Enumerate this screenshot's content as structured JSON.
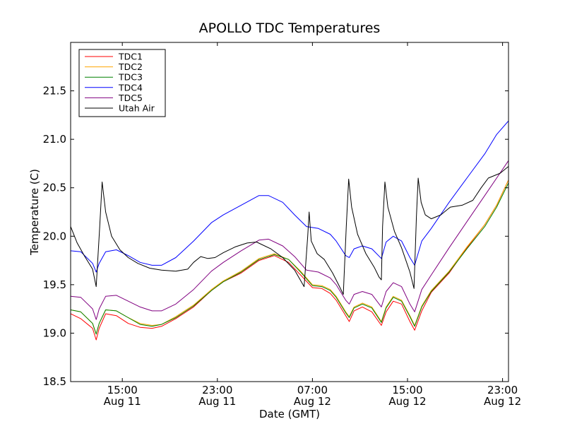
{
  "chart_data": {
    "type": "line",
    "title": "APOLLO TDC Temperatures",
    "xlabel": "Date (GMT)",
    "ylabel": "Temperature (C)",
    "x_unit": "hours since Aug 11 00:00 GMT",
    "xlim": [
      10.65,
      47.5
    ],
    "ylim": [
      18.5,
      22.0
    ],
    "grid": false,
    "legend_position": "top-left",
    "x_ticks": [
      {
        "x": 15,
        "time": "15:00",
        "date": "Aug 11"
      },
      {
        "x": 23,
        "time": "23:00",
        "date": "Aug 11"
      },
      {
        "x": 31,
        "time": "07:00",
        "date": "Aug 12"
      },
      {
        "x": 39,
        "time": "15:00",
        "date": "Aug 12"
      },
      {
        "x": 47,
        "time": "23:00",
        "date": "Aug 12"
      }
    ],
    "y_ticks": [
      {
        "v": 18.5,
        "label": "18.5"
      },
      {
        "v": 19.0,
        "label": "19.0"
      },
      {
        "v": 19.5,
        "label": "19.5"
      },
      {
        "v": 20.0,
        "label": "20.0"
      },
      {
        "v": 20.5,
        "label": "20.5"
      },
      {
        "v": 21.0,
        "label": "21.0"
      },
      {
        "v": 21.5,
        "label": "21.5"
      }
    ],
    "series": [
      {
        "name": "TDC1",
        "color": "#ff0000",
        "points": [
          [
            10.65,
            19.2
          ],
          [
            11.5,
            19.15
          ],
          [
            12.5,
            19.05
          ],
          [
            12.8,
            18.93
          ],
          [
            13.05,
            19.05
          ],
          [
            13.6,
            19.2
          ],
          [
            14.5,
            19.18
          ],
          [
            15.5,
            19.1
          ],
          [
            16.5,
            19.06
          ],
          [
            17.5,
            19.05
          ],
          [
            18.3,
            19.07
          ],
          [
            19.5,
            19.15
          ],
          [
            21,
            19.27
          ],
          [
            22.5,
            19.44
          ],
          [
            23.5,
            19.53
          ],
          [
            25,
            19.62
          ],
          [
            26.5,
            19.75
          ],
          [
            27.8,
            19.8
          ],
          [
            29,
            19.73
          ],
          [
            30,
            19.6
          ],
          [
            31,
            19.47
          ],
          [
            31.8,
            19.46
          ],
          [
            32.5,
            19.41
          ],
          [
            33,
            19.34
          ],
          [
            33.8,
            19.18
          ],
          [
            34.1,
            19.12
          ],
          [
            34.5,
            19.23
          ],
          [
            35.2,
            19.27
          ],
          [
            36,
            19.22
          ],
          [
            36.8,
            19.08
          ],
          [
            37.2,
            19.22
          ],
          [
            37.8,
            19.33
          ],
          [
            38.5,
            19.3
          ],
          [
            39.2,
            19.12
          ],
          [
            39.6,
            19.03
          ],
          [
            40.2,
            19.23
          ],
          [
            41,
            19.42
          ],
          [
            42.5,
            19.62
          ],
          [
            44,
            19.88
          ],
          [
            45.5,
            20.12
          ],
          [
            46.5,
            20.32
          ],
          [
            47.5,
            20.58
          ]
        ]
      },
      {
        "name": "TDC2",
        "color": "#ffa500",
        "points": [
          [
            10.65,
            19.24
          ],
          [
            11.5,
            19.22
          ],
          [
            12.5,
            19.1
          ],
          [
            12.8,
            18.99
          ],
          [
            13.05,
            19.1
          ],
          [
            13.6,
            19.24
          ],
          [
            14.5,
            19.23
          ],
          [
            15.5,
            19.16
          ],
          [
            16.5,
            19.1
          ],
          [
            17.5,
            19.08
          ],
          [
            18.3,
            19.09
          ],
          [
            19.5,
            19.17
          ],
          [
            21,
            19.29
          ],
          [
            22.5,
            19.45
          ],
          [
            23.5,
            19.54
          ],
          [
            25,
            19.64
          ],
          [
            26.5,
            19.77
          ],
          [
            27.8,
            19.82
          ],
          [
            29,
            19.76
          ],
          [
            30,
            19.64
          ],
          [
            31,
            19.5
          ],
          [
            31.8,
            19.49
          ],
          [
            32.5,
            19.45
          ],
          [
            33,
            19.38
          ],
          [
            33.8,
            19.22
          ],
          [
            34.1,
            19.17
          ],
          [
            34.5,
            19.27
          ],
          [
            35.2,
            19.31
          ],
          [
            36,
            19.27
          ],
          [
            36.8,
            19.12
          ],
          [
            37.2,
            19.27
          ],
          [
            37.8,
            19.38
          ],
          [
            38.5,
            19.34
          ],
          [
            39.2,
            19.18
          ],
          [
            39.6,
            19.08
          ],
          [
            40.2,
            19.28
          ],
          [
            41,
            19.44
          ],
          [
            42.5,
            19.64
          ],
          [
            44,
            19.89
          ],
          [
            45.5,
            20.12
          ],
          [
            46.5,
            20.32
          ],
          [
            47.5,
            20.58
          ]
        ]
      },
      {
        "name": "TDC3",
        "color": "#008000",
        "points": [
          [
            10.65,
            19.24
          ],
          [
            11.5,
            19.22
          ],
          [
            12.5,
            19.1
          ],
          [
            12.8,
            18.99
          ],
          [
            13.05,
            19.1
          ],
          [
            13.6,
            19.24
          ],
          [
            14.5,
            19.23
          ],
          [
            15.5,
            19.16
          ],
          [
            16.5,
            19.09
          ],
          [
            17.5,
            19.07
          ],
          [
            18.3,
            19.09
          ],
          [
            19.5,
            19.16
          ],
          [
            21,
            19.28
          ],
          [
            22.5,
            19.44
          ],
          [
            23.5,
            19.53
          ],
          [
            25,
            19.63
          ],
          [
            26.5,
            19.76
          ],
          [
            27.8,
            19.81
          ],
          [
            29,
            19.76
          ],
          [
            30,
            19.63
          ],
          [
            31,
            19.49
          ],
          [
            31.8,
            19.48
          ],
          [
            32.5,
            19.44
          ],
          [
            33,
            19.37
          ],
          [
            33.8,
            19.21
          ],
          [
            34.1,
            19.16
          ],
          [
            34.5,
            19.26
          ],
          [
            35.2,
            19.3
          ],
          [
            36,
            19.26
          ],
          [
            36.8,
            19.11
          ],
          [
            37.2,
            19.26
          ],
          [
            37.8,
            19.37
          ],
          [
            38.5,
            19.33
          ],
          [
            39.2,
            19.17
          ],
          [
            39.6,
            19.07
          ],
          [
            40.2,
            19.27
          ],
          [
            41,
            19.43
          ],
          [
            42.5,
            19.63
          ],
          [
            44,
            19.87
          ],
          [
            45.5,
            20.1
          ],
          [
            46.5,
            20.3
          ],
          [
            47.5,
            20.55
          ]
        ]
      },
      {
        "name": "TDC4",
        "color": "#0000ff",
        "points": [
          [
            10.65,
            19.85
          ],
          [
            11.5,
            19.84
          ],
          [
            12.5,
            19.72
          ],
          [
            12.8,
            19.63
          ],
          [
            13.05,
            19.72
          ],
          [
            13.6,
            19.84
          ],
          [
            14.5,
            19.86
          ],
          [
            15.5,
            19.8
          ],
          [
            16.5,
            19.73
          ],
          [
            17.5,
            19.7
          ],
          [
            18.3,
            19.7
          ],
          [
            19.5,
            19.78
          ],
          [
            21,
            19.95
          ],
          [
            22.5,
            20.14
          ],
          [
            23.5,
            20.22
          ],
          [
            25,
            20.32
          ],
          [
            26.5,
            20.42
          ],
          [
            27.3,
            20.42
          ],
          [
            28.5,
            20.35
          ],
          [
            29.5,
            20.22
          ],
          [
            30.5,
            20.1
          ],
          [
            31.5,
            20.08
          ],
          [
            32.5,
            20.02
          ],
          [
            33,
            19.95
          ],
          [
            33.8,
            19.8
          ],
          [
            34.1,
            19.78
          ],
          [
            34.5,
            19.87
          ],
          [
            35.2,
            19.9
          ],
          [
            36,
            19.87
          ],
          [
            36.8,
            19.77
          ],
          [
            37.2,
            19.94
          ],
          [
            37.8,
            20.0
          ],
          [
            38.5,
            19.95
          ],
          [
            39.2,
            19.78
          ],
          [
            39.6,
            19.7
          ],
          [
            40.2,
            19.95
          ],
          [
            41,
            20.08
          ],
          [
            42.5,
            20.35
          ],
          [
            44,
            20.6
          ],
          [
            45.5,
            20.85
          ],
          [
            46.5,
            21.05
          ],
          [
            47.5,
            21.19
          ]
        ]
      },
      {
        "name": "TDC5",
        "color": "#800080",
        "points": [
          [
            10.65,
            19.38
          ],
          [
            11.5,
            19.37
          ],
          [
            12.5,
            19.25
          ],
          [
            12.8,
            19.14
          ],
          [
            13.05,
            19.25
          ],
          [
            13.6,
            19.38
          ],
          [
            14.5,
            19.39
          ],
          [
            15.5,
            19.33
          ],
          [
            16.5,
            19.27
          ],
          [
            17.5,
            19.23
          ],
          [
            18.3,
            19.23
          ],
          [
            19.5,
            19.3
          ],
          [
            21,
            19.45
          ],
          [
            22.5,
            19.64
          ],
          [
            23.5,
            19.73
          ],
          [
            25,
            19.85
          ],
          [
            26.5,
            19.96
          ],
          [
            27.3,
            19.97
          ],
          [
            28.5,
            19.9
          ],
          [
            29.5,
            19.79
          ],
          [
            30.5,
            19.65
          ],
          [
            31.5,
            19.63
          ],
          [
            32.5,
            19.57
          ],
          [
            33,
            19.5
          ],
          [
            33.8,
            19.34
          ],
          [
            34.1,
            19.3
          ],
          [
            34.5,
            19.4
          ],
          [
            35.2,
            19.43
          ],
          [
            36,
            19.4
          ],
          [
            36.8,
            19.27
          ],
          [
            37.2,
            19.43
          ],
          [
            37.8,
            19.52
          ],
          [
            38.5,
            19.48
          ],
          [
            39.2,
            19.3
          ],
          [
            39.6,
            19.22
          ],
          [
            40.2,
            19.45
          ],
          [
            41,
            19.6
          ],
          [
            42.5,
            19.88
          ],
          [
            44,
            20.15
          ],
          [
            45.5,
            20.42
          ],
          [
            46.5,
            20.6
          ],
          [
            47.5,
            20.78
          ]
        ]
      },
      {
        "name": "Utah Air",
        "color": "#000000",
        "points": [
          [
            10.65,
            20.1
          ],
          [
            11.2,
            19.93
          ],
          [
            11.8,
            19.8
          ],
          [
            12.5,
            19.66
          ],
          [
            12.8,
            19.48
          ],
          [
            13.1,
            20.1
          ],
          [
            13.3,
            20.56
          ],
          [
            13.6,
            20.25
          ],
          [
            14.1,
            20.0
          ],
          [
            14.8,
            19.86
          ],
          [
            15.5,
            19.78
          ],
          [
            16.3,
            19.72
          ],
          [
            17.3,
            19.67
          ],
          [
            18.3,
            19.65
          ],
          [
            19.5,
            19.64
          ],
          [
            20.5,
            19.66
          ],
          [
            21,
            19.73
          ],
          [
            21.6,
            19.79
          ],
          [
            22.2,
            19.77
          ],
          [
            22.8,
            19.78
          ],
          [
            23.5,
            19.83
          ],
          [
            24.5,
            19.89
          ],
          [
            25.5,
            19.93
          ],
          [
            26.3,
            19.94
          ],
          [
            27.5,
            19.87
          ],
          [
            28.5,
            19.78
          ],
          [
            29.5,
            19.65
          ],
          [
            30.3,
            19.48
          ],
          [
            30.6,
            20.0
          ],
          [
            30.72,
            20.25
          ],
          [
            30.9,
            19.95
          ],
          [
            31.4,
            19.82
          ],
          [
            32,
            19.76
          ],
          [
            32.7,
            19.62
          ],
          [
            33.2,
            19.5
          ],
          [
            33.6,
            19.4
          ],
          [
            33.85,
            20.1
          ],
          [
            34.05,
            20.59
          ],
          [
            34.3,
            20.3
          ],
          [
            34.8,
            20.02
          ],
          [
            35.5,
            19.82
          ],
          [
            36.2,
            19.68
          ],
          [
            36.6,
            19.58
          ],
          [
            36.8,
            19.55
          ],
          [
            36.9,
            20.1
          ],
          [
            37.1,
            20.56
          ],
          [
            37.35,
            20.3
          ],
          [
            37.9,
            20.05
          ],
          [
            38.5,
            19.88
          ],
          [
            39.2,
            19.63
          ],
          [
            39.55,
            19.46
          ],
          [
            39.75,
            20.2
          ],
          [
            39.9,
            20.6
          ],
          [
            40.15,
            20.35
          ],
          [
            40.5,
            20.22
          ],
          [
            41,
            20.18
          ],
          [
            41.8,
            20.22
          ],
          [
            42.6,
            20.3
          ],
          [
            43.6,
            20.32
          ],
          [
            44.5,
            20.37
          ],
          [
            45.2,
            20.5
          ],
          [
            45.8,
            20.6
          ],
          [
            46.8,
            20.65
          ],
          [
            47.5,
            20.72
          ]
        ]
      }
    ]
  }
}
